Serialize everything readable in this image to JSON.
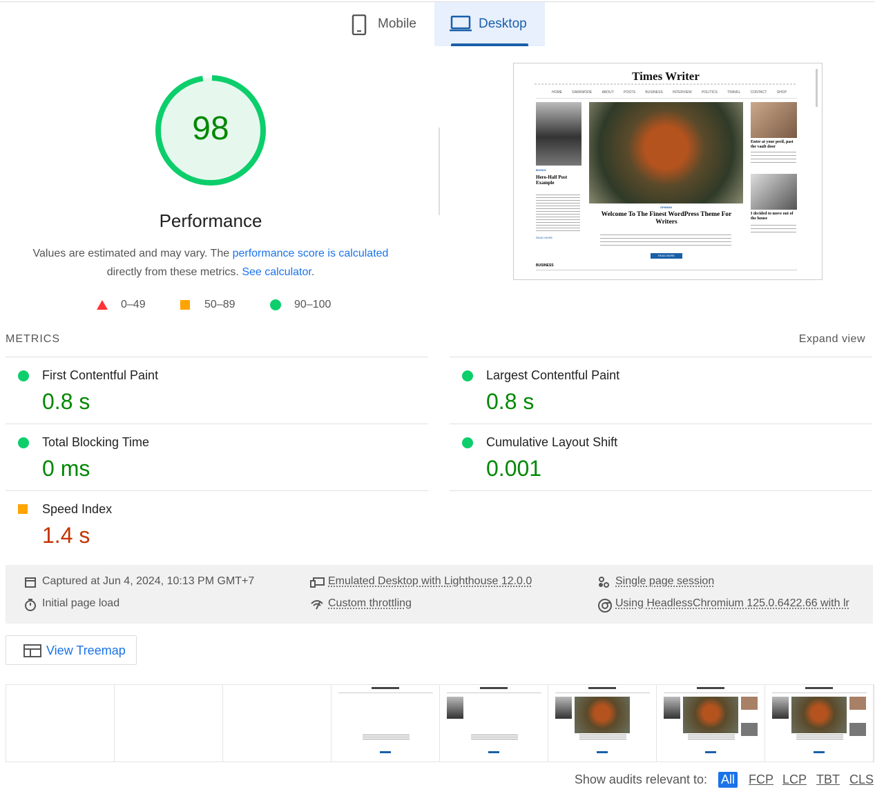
{
  "tabs": {
    "items": [
      "Mobile",
      "Desktop"
    ],
    "active": 1
  },
  "score": {
    "value": 98,
    "label": "Performance"
  },
  "description": {
    "text_1": "Values are estimated and may vary. The ",
    "link_1": "performance score is calculated",
    "text_2": "directly from these metrics. ",
    "link_2": "See calculator",
    "text_3": "."
  },
  "legend": [
    "0–49",
    "50–89",
    "90–100"
  ],
  "preview": {
    "site_title": "Times Writer",
    "nav": [
      "HOME",
      "DARKMODE",
      "ABOUT",
      "POSTS",
      "BUSINESS",
      "INTERVIEW",
      "POLITICS",
      "TRAVEL",
      "CONTACT",
      "SHOP"
    ],
    "tag_1": "BOOKS",
    "post_1": "Hero-Half Post Example",
    "read_more_1": "READ MORE",
    "tag_2": "OPINION",
    "post_2": "Welcome To The Finest WordPress Theme For Writers",
    "button": "READ MORE",
    "post_3": "Enter at your peril, past the vault door",
    "post_4": "I decided to move out of the house",
    "section": "BUSINESS"
  },
  "metrics": {
    "title": "METRICS",
    "expand": "Expand view",
    "items": [
      {
        "name": "First Contentful Paint",
        "value": "0.8 s",
        "rating": "pass"
      },
      {
        "name": "Largest Contentful Paint",
        "value": "0.8 s",
        "rating": "pass"
      },
      {
        "name": "Total Blocking Time",
        "value": "0 ms",
        "rating": "pass"
      },
      {
        "name": "Cumulative Layout Shift",
        "value": "0.001",
        "rating": "pass"
      },
      {
        "name": "Speed Index",
        "value": "1.4 s",
        "rating": "average"
      }
    ]
  },
  "info": [
    {
      "text": "Captured at Jun 4, 2024, 10:13 PM GMT+7",
      "dotted": false
    },
    {
      "text": "Emulated Desktop with Lighthouse 12.0.0",
      "dotted": true
    },
    {
      "text": "Single page session",
      "dotted": true
    },
    {
      "text": "Initial page load",
      "dotted": false
    },
    {
      "text": "Custom throttling",
      "dotted": true
    },
    {
      "text": "Using HeadlessChromium 125.0.6422.66 with lr",
      "dotted": true
    }
  ],
  "treemap": "View Treemap",
  "filter": {
    "label": "Show audits relevant to:",
    "options": [
      "All",
      "FCP",
      "LCP",
      "TBT",
      "CLS"
    ],
    "active": 0
  }
}
